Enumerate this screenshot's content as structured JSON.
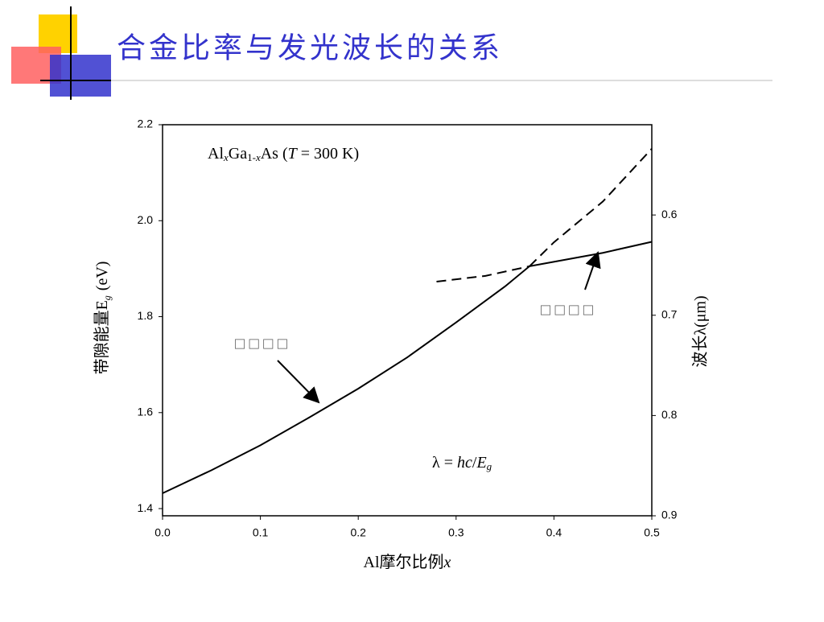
{
  "slide": {
    "title": "合金比率与发光波长的关系"
  },
  "chart_data": {
    "type": "line",
    "xlabel": [
      "Al摩尔比例",
      "x"
    ],
    "ylabel": [
      "带隙能量E",
      "g",
      "(eV)"
    ],
    "y2label": "波长λ(μm)",
    "annotations": [
      {
        "parts": [
          "Al",
          "x",
          "Ga",
          "1-",
          "x",
          "As (",
          "T",
          " = 300 K)"
        ]
      },
      {
        "parts": [
          "λ = ",
          "hc",
          "/",
          "E",
          "g"
        ]
      },
      {
        "text": "□ □ □ □"
      },
      {
        "text": "□ □ □ □"
      }
    ],
    "series": [
      {
        "color": "#000000",
        "dashed": false,
        "x": [
          0,
          0.05,
          0.1,
          0.15,
          0.2,
          0.25,
          0.3,
          0.35,
          0.375
        ],
        "values": [
          1.432,
          1.48,
          1.532,
          1.59,
          1.65,
          1.715,
          1.788,
          1.863,
          1.905
        ]
      },
      {
        "color": "#000000",
        "dashed": false,
        "x": [
          0.375,
          0.45,
          0.5
        ],
        "values": [
          1.905,
          1.933,
          1.956
        ]
      },
      {
        "color": "#000000",
        "dashed": true,
        "x": [
          0.375,
          0.4,
          0.45,
          0.5
        ],
        "values": [
          1.905,
          1.955,
          2.04,
          2.15
        ]
      },
      {
        "color": "#000000",
        "dashed": true,
        "x": [
          0.28,
          0.33,
          0.375
        ],
        "values": [
          1.873,
          1.885,
          1.905
        ]
      }
    ],
    "xlim": [
      0,
      0.5
    ],
    "xticks": [
      {
        "value": 0,
        "label": "0.0"
      },
      0.1,
      0.2,
      0.3,
      0.4,
      0.5
    ],
    "ylim": [
      1.385,
      2.2
    ],
    "yticks": [
      1.4,
      1.6,
      1.8,
      {
        "value": 2,
        "label": "2.0"
      },
      2.2
    ],
    "y2lim": [
      0.9,
      0.51
    ],
    "y2ticks": [
      0.6,
      0.7,
      0.8,
      0.9
    ]
  }
}
